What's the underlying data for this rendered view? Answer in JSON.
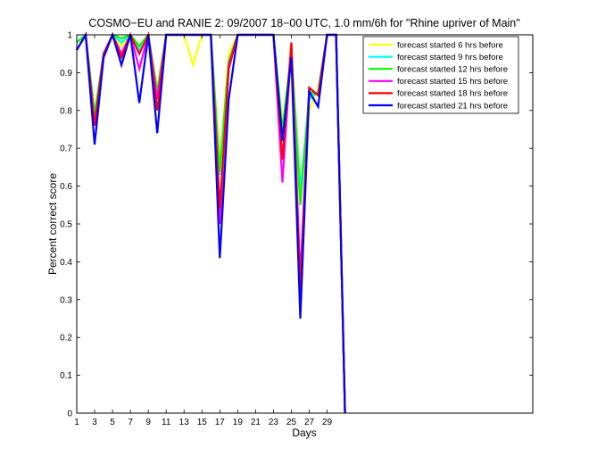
{
  "chart_data": {
    "type": "line",
    "title": "COSMO−EU and RANIE 2: 09/2007 18−00 UTC, 1.0 mm/6h for \"Rhine upriver of Main\"",
    "xlabel": "Days",
    "ylabel": "Percent correct score",
    "xlim": [
      1,
      52
    ],
    "ylim": [
      0,
      1
    ],
    "x_ticks": [
      1,
      3,
      5,
      7,
      9,
      11,
      13,
      15,
      17,
      19,
      21,
      23,
      25,
      27,
      29
    ],
    "y_ticks": [
      0,
      0.1,
      0.2,
      0.3,
      0.4,
      0.5,
      0.6,
      0.7,
      0.8,
      0.9,
      1
    ],
    "y_tick_labels": [
      "0",
      "0.1",
      "0.2",
      "0.3",
      "0.4",
      "0.5",
      "0.6",
      "0.7",
      "0.8",
      "0.9",
      "1"
    ],
    "legend_position": "top-right",
    "grid": false,
    "x": [
      1,
      2,
      3,
      4,
      5,
      6,
      7,
      8,
      9,
      10,
      11,
      12,
      13,
      14,
      15,
      16,
      17,
      18,
      19,
      20,
      21,
      22,
      23,
      24,
      25,
      26,
      27,
      28,
      29,
      30,
      31
    ],
    "series": [
      {
        "name": "forecast started 6 hrs before",
        "color": "#ffff00",
        "values": [
          0.98,
          1,
          0.78,
          0.95,
          1,
          0.97,
          1,
          0.97,
          1,
          0.86,
          1,
          1,
          1,
          0.92,
          1,
          1,
          0.65,
          0.95,
          1,
          1,
          1,
          1,
          1,
          0.76,
          0.96,
          0.61,
          0.8,
          0.86,
          1,
          1,
          0
        ]
      },
      {
        "name": "forecast started 9 hrs before",
        "color": "#00ffff",
        "values": [
          0.98,
          1,
          0.77,
          0.95,
          1,
          0.98,
          1,
          0.96,
          1,
          0.84,
          1,
          1,
          1,
          1,
          1,
          1,
          0.63,
          0.93,
          1,
          1,
          1,
          1,
          1,
          0.74,
          0.95,
          0.59,
          0.83,
          0.85,
          1,
          1,
          0
        ]
      },
      {
        "name": "forecast started 12 hrs before",
        "color": "#00ff00",
        "values": [
          0.98,
          1,
          0.79,
          0.95,
          1,
          0.99,
          1,
          0.97,
          1,
          0.85,
          1,
          1,
          1,
          1,
          1,
          1,
          0.64,
          0.93,
          1,
          1,
          1,
          1,
          1,
          0.75,
          0.95,
          0.55,
          0.85,
          0.84,
          1,
          1,
          0
        ]
      },
      {
        "name": "forecast started 15 hrs before",
        "color": "#ff00ff",
        "values": [
          0.96,
          1,
          0.76,
          0.95,
          1,
          0.95,
          1,
          0.91,
          1,
          0.83,
          1,
          1,
          1,
          1,
          1,
          1,
          0.5,
          0.92,
          1,
          1,
          1,
          1,
          1,
          0.61,
          0.97,
          0.36,
          0.86,
          0.84,
          1,
          1,
          0
        ]
      },
      {
        "name": "forecast started 18 hrs before",
        "color": "#ff0000",
        "values": [
          0.96,
          1,
          0.76,
          0.95,
          1,
          0.94,
          1,
          0.95,
          1,
          0.8,
          1,
          1,
          1,
          1,
          1,
          1,
          0.54,
          0.91,
          1,
          1,
          1,
          1,
          1,
          0.67,
          0.98,
          0.32,
          0.86,
          0.84,
          1,
          1,
          0
        ]
      },
      {
        "name": "forecast started 21 hrs before",
        "color": "#0000ff",
        "values": [
          0.96,
          1,
          0.71,
          0.94,
          1,
          0.92,
          1,
          0.82,
          1,
          0.74,
          1,
          1,
          1,
          1,
          1,
          1,
          0.41,
          0.83,
          1,
          1,
          1,
          1,
          1,
          0.72,
          0.94,
          0.25,
          0.85,
          0.81,
          1,
          1,
          0
        ]
      }
    ]
  }
}
